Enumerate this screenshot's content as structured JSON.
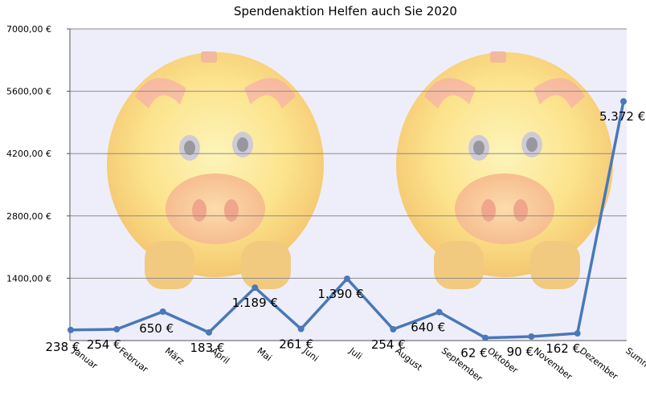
{
  "chart_data": {
    "type": "line",
    "title": "Spendenaktion Helfen auch Sie 2020",
    "xlabel": "",
    "ylabel": "",
    "ylim": [
      0,
      7000
    ],
    "yticks": [
      1400,
      2800,
      4200,
      5600,
      7000
    ],
    "ytick_labels": [
      "1400,00 €",
      "2800,00 €",
      "4200,00 €",
      "5600,00 €",
      "7000,00 €"
    ],
    "grid": true,
    "legend": "none",
    "categories": [
      "Januar",
      "Februar",
      "März",
      "April",
      "Mai",
      "Juni",
      "Juli",
      "August",
      "September",
      "Oktober",
      "November",
      "Dezember",
      "Summe"
    ],
    "values": [
      238,
      254,
      650,
      183,
      1189,
      261,
      1390,
      254,
      640,
      62,
      90,
      162,
      5372
    ],
    "data_labels": [
      "238 €",
      "254 €",
      "650 €",
      "183 €",
      "1.189 €",
      "261 €",
      "1.390 €",
      "254 €",
      "640 €",
      "62 €",
      "90 €",
      "162 €",
      "5.372 €"
    ],
    "line_color": "#4a78b8",
    "plot_background": "#eeeefa",
    "background_image": "two-piggy-banks"
  }
}
